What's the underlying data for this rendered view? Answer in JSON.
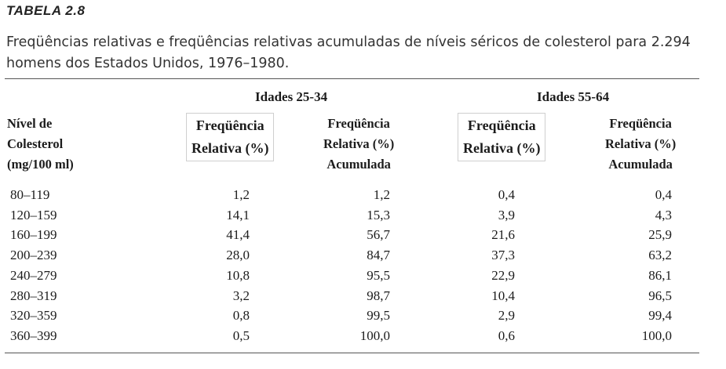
{
  "caption": {
    "label": "TABELA 2.8",
    "text": "Freqüências relativas e freqüências relativas acumuladas de níveis séricos de colesterol para 2.294 homens dos Estados Unidos, 1976–1980."
  },
  "headers": {
    "group1": "Idades 25-34",
    "group2": "Idades 55-64",
    "level": [
      "Nível de",
      "Colesterol",
      "(mg/100 ml)"
    ],
    "rel": [
      "Freqüência",
      "Relativa (%)"
    ],
    "cum": [
      "Freqüência",
      "Relativa (%)",
      "Acumulada"
    ]
  },
  "rows": [
    {
      "level": "80–119",
      "rel1": "1,2",
      "cum1": "1,2",
      "rel2": "0,4",
      "cum2": "0,4"
    },
    {
      "level": "120–159",
      "rel1": "14,1",
      "cum1": "15,3",
      "rel2": "3,9",
      "cum2": "4,3"
    },
    {
      "level": "160–199",
      "rel1": "41,4",
      "cum1": "56,7",
      "rel2": "21,6",
      "cum2": "25,9"
    },
    {
      "level": "200–239",
      "rel1": "28,0",
      "cum1": "84,7",
      "rel2": "37,3",
      "cum2": "63,2"
    },
    {
      "level": "240–279",
      "rel1": "10,8",
      "cum1": "95,5",
      "rel2": "22,9",
      "cum2": "86,1"
    },
    {
      "level": "280–319",
      "rel1": "3,2",
      "cum1": "98,7",
      "rel2": "10,4",
      "cum2": "96,5"
    },
    {
      "level": "320–359",
      "rel1": "0,8",
      "cum1": "99,5",
      "rel2": "2,9",
      "cum2": "99,4"
    },
    {
      "level": "360–399",
      "rel1": "0,5",
      "cum1": "100,0",
      "rel2": "0,6",
      "cum2": "100,0"
    }
  ]
}
